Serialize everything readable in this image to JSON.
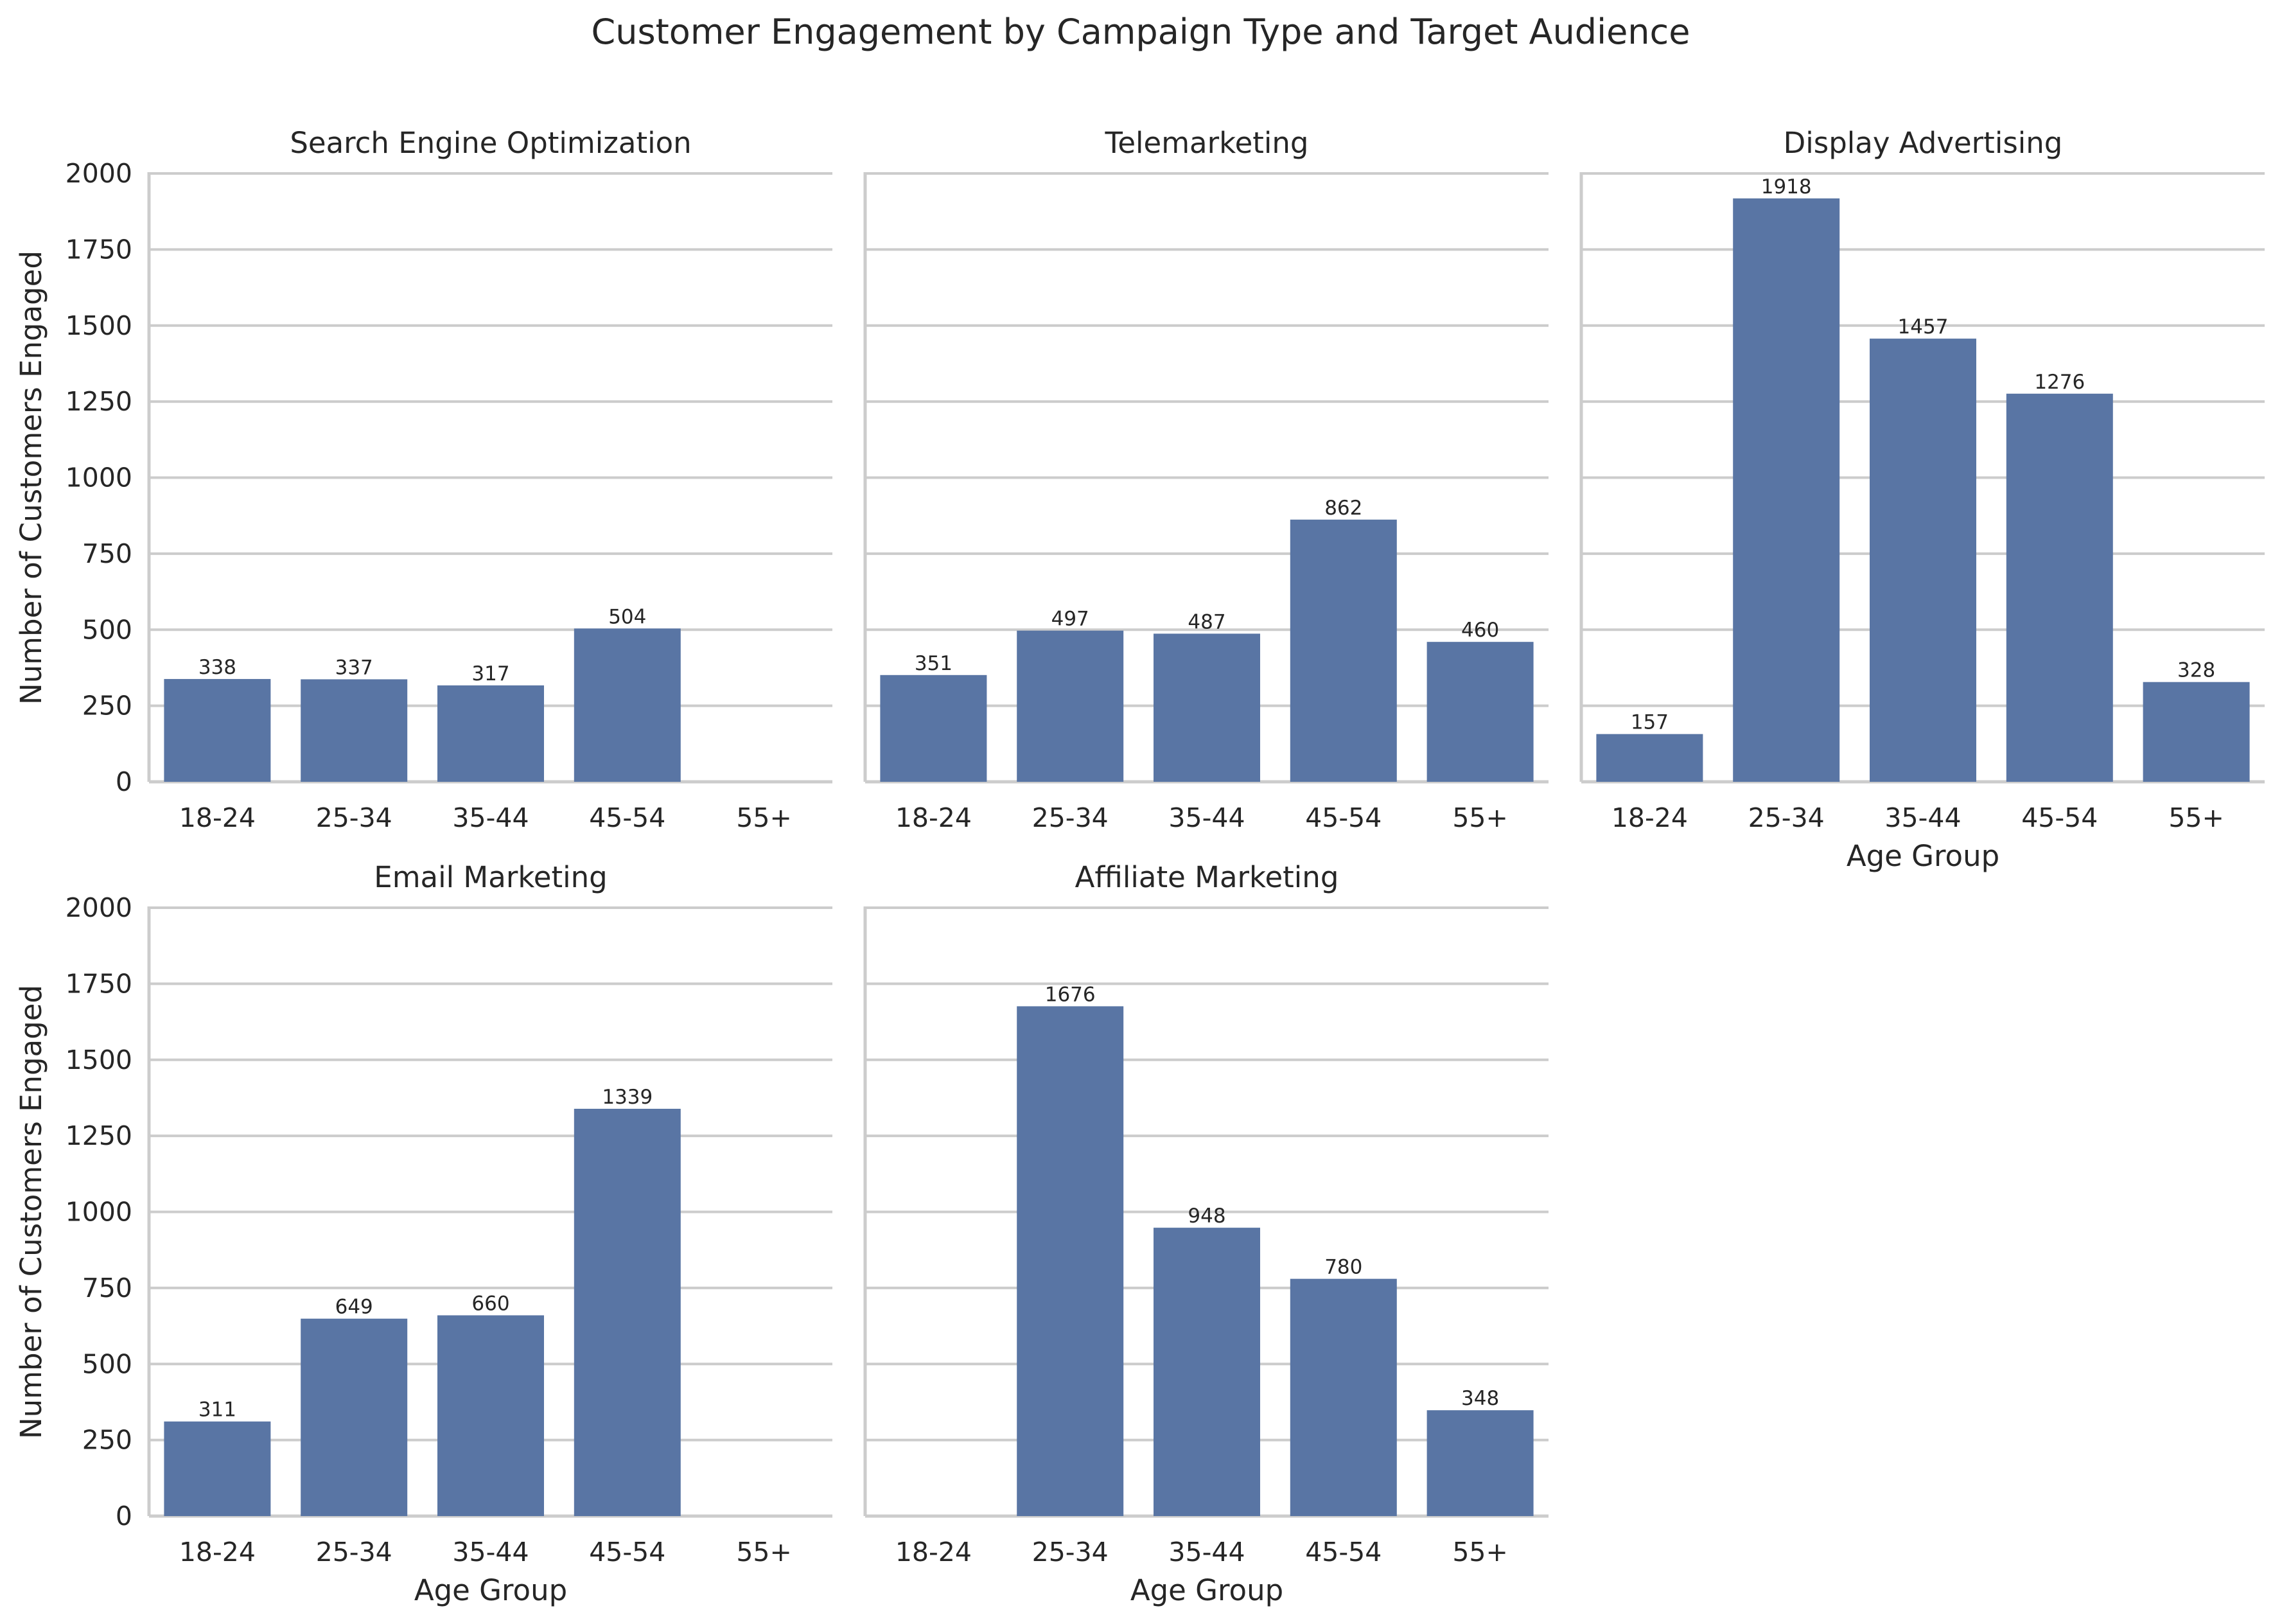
{
  "chart_data": {
    "type": "bar",
    "title": "Customer Engagement by Campaign Type and Target Audience",
    "xlabel": "Age Group",
    "ylabel": "Number of Customers Engaged",
    "ylim": [
      0,
      2000
    ],
    "yticks": [
      0,
      250,
      500,
      750,
      1000,
      1250,
      1500,
      1750,
      2000
    ],
    "categories": [
      "18-24",
      "25-34",
      "35-44",
      "45-54",
      "55+"
    ],
    "grid": "horizontal",
    "bar_color": "#5975a4",
    "panels": [
      {
        "name": "Search Engine Optimization",
        "values": [
          338,
          337,
          317,
          504,
          null
        ]
      },
      {
        "name": "Telemarketing",
        "values": [
          351,
          497,
          487,
          862,
          460
        ]
      },
      {
        "name": "Display Advertising",
        "values": [
          157,
          1918,
          1457,
          1276,
          328
        ]
      },
      {
        "name": "Email Marketing",
        "values": [
          311,
          649,
          660,
          1339,
          null
        ]
      },
      {
        "name": "Affiliate Marketing",
        "values": [
          null,
          1676,
          948,
          780,
          348
        ]
      }
    ]
  }
}
